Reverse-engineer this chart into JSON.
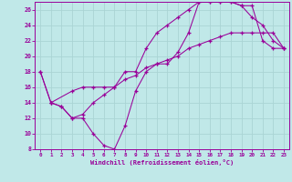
{
  "xlabel": "Windchill (Refroidissement éolien,°C)",
  "line_color": "#990099",
  "bg_color": "#c0e8e8",
  "grid_color": "#aad4d4",
  "xlim": [
    -0.5,
    23.5
  ],
  "ylim": [
    8,
    27
  ],
  "xticks": [
    0,
    1,
    2,
    3,
    4,
    5,
    6,
    7,
    8,
    9,
    10,
    11,
    12,
    13,
    14,
    15,
    16,
    17,
    18,
    19,
    20,
    21,
    22,
    23
  ],
  "yticks": [
    8,
    10,
    12,
    14,
    16,
    18,
    20,
    22,
    24,
    26
  ],
  "line1_x": [
    0,
    1,
    2,
    3,
    4,
    5,
    6,
    7,
    8,
    9,
    10,
    11,
    12,
    13,
    14,
    15,
    16,
    17,
    18,
    19,
    20,
    21,
    22,
    23
  ],
  "line1_y": [
    18,
    14,
    13.5,
    12,
    12,
    10,
    8.5,
    8,
    11,
    15.5,
    18,
    19,
    19,
    20.5,
    23,
    27,
    27,
    27,
    27,
    26.5,
    26.5,
    22,
    21,
    21
  ],
  "line2_x": [
    0,
    1,
    3,
    4,
    5,
    6,
    7,
    8,
    9,
    10,
    11,
    12,
    13,
    14,
    15,
    16,
    17,
    18,
    19,
    20,
    21,
    22,
    23
  ],
  "line2_y": [
    18,
    14,
    15.5,
    16,
    16,
    16,
    16,
    17,
    17.5,
    18.5,
    19,
    19.5,
    20,
    21,
    21.5,
    22,
    22.5,
    23,
    23,
    23,
    23,
    23,
    21
  ],
  "line3_x": [
    1,
    2,
    3,
    4,
    5,
    6,
    7,
    8,
    9,
    10,
    11,
    12,
    13,
    14,
    15,
    16,
    17,
    18,
    19,
    20,
    21,
    22,
    23
  ],
  "line3_y": [
    14,
    13.5,
    12,
    12.5,
    14,
    15,
    16,
    18,
    18,
    21,
    23,
    24,
    25,
    26,
    27,
    27,
    27,
    27,
    26.5,
    25,
    24,
    22,
    21
  ]
}
